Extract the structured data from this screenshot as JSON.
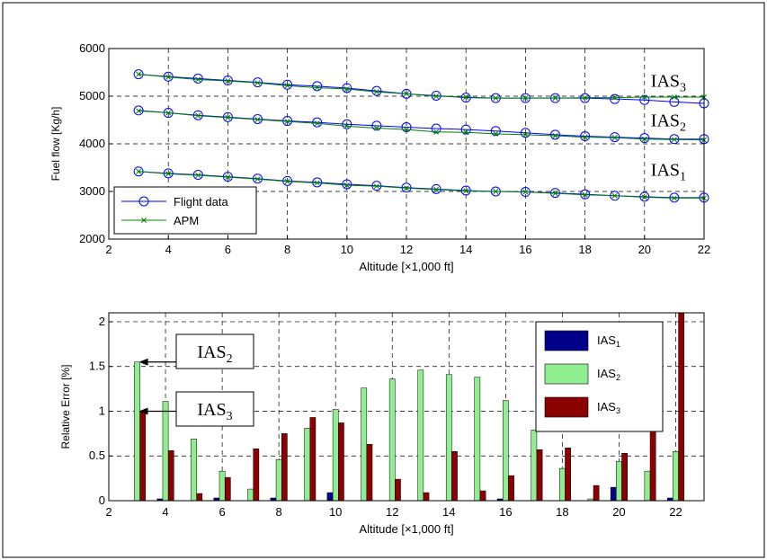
{
  "chart_data": [
    {
      "type": "line",
      "xlabel": "Altitude [×1,000 ft]",
      "ylabel": "Fuel flow [Kg/h]",
      "xlim": [
        2,
        22
      ],
      "ylim": [
        2000,
        6000
      ],
      "xticks": [
        "2",
        "4",
        "6",
        "8",
        "10",
        "12",
        "14",
        "16",
        "18",
        "20",
        "22"
      ],
      "yticks": [
        "2000",
        "3000",
        "4000",
        "5000",
        "6000"
      ],
      "grid": true,
      "legend_position": "bottom-left",
      "x": [
        3,
        4,
        5,
        6,
        7,
        8,
        9,
        10,
        11,
        12,
        13,
        14,
        15,
        16,
        17,
        18,
        19,
        20,
        21,
        22
      ],
      "series": [
        {
          "name": "Flight data",
          "group": "IAS1",
          "color": "#0000ff",
          "marker": "circle",
          "values": [
            3420,
            3380,
            3350,
            3310,
            3270,
            3220,
            3190,
            3150,
            3120,
            3080,
            3050,
            3020,
            3000,
            2990,
            2970,
            2940,
            2910,
            2890,
            2870,
            2870
          ]
        },
        {
          "name": "APM",
          "group": "IAS1",
          "color": "#008000",
          "marker": "x",
          "values": [
            3420,
            3370,
            3340,
            3300,
            3260,
            3210,
            3180,
            3130,
            3110,
            3070,
            3040,
            3010,
            3000,
            2990,
            2960,
            2930,
            2910,
            2880,
            2860,
            2860
          ]
        },
        {
          "name": "Flight data",
          "group": "IAS2",
          "color": "#0000ff",
          "marker": "circle",
          "values": [
            4700,
            4650,
            4600,
            4560,
            4520,
            4480,
            4450,
            4410,
            4380,
            4350,
            4320,
            4300,
            4270,
            4230,
            4190,
            4160,
            4140,
            4120,
            4100,
            4100
          ]
        },
        {
          "name": "APM",
          "group": "IAS2",
          "color": "#008000",
          "marker": "x",
          "values": [
            4690,
            4650,
            4590,
            4550,
            4510,
            4470,
            4430,
            4370,
            4330,
            4300,
            4250,
            4240,
            4210,
            4190,
            4170,
            4140,
            4130,
            4100,
            4090,
            4080
          ]
        },
        {
          "name": "Flight data",
          "group": "IAS3",
          "color": "#0000ff",
          "marker": "circle",
          "values": [
            5460,
            5410,
            5370,
            5330,
            5290,
            5240,
            5210,
            5170,
            5110,
            5050,
            5010,
            4970,
            4960,
            4960,
            4960,
            4960,
            4940,
            4920,
            4880,
            4850
          ]
        },
        {
          "name": "APM",
          "group": "IAS3",
          "color": "#008000",
          "marker": "x",
          "values": [
            5460,
            5400,
            5350,
            5320,
            5280,
            5220,
            5180,
            5150,
            5090,
            5050,
            5000,
            4980,
            4960,
            4960,
            4960,
            4970,
            4970,
            4980,
            4980,
            4980
          ]
        }
      ],
      "legend": [
        "Flight data",
        "APM"
      ],
      "annotations": [
        {
          "text": "IAS",
          "sub": "3",
          "x": 20,
          "y": 5200
        },
        {
          "text": "IAS",
          "sub": "2",
          "x": 20,
          "y": 4370
        },
        {
          "text": "IAS",
          "sub": "1",
          "x": 20,
          "y": 3330
        }
      ]
    },
    {
      "type": "bar",
      "xlabel": "Altitude [×1,000 ft]",
      "ylabel": "Relative Error [%]",
      "xlim": [
        2,
        23
      ],
      "ylim": [
        0,
        2.1
      ],
      "xticks": [
        "2",
        "4",
        "6",
        "8",
        "10",
        "12",
        "14",
        "16",
        "18",
        "20",
        "22"
      ],
      "yticks": [
        "0",
        "0.5",
        "1",
        "1.5",
        "2"
      ],
      "grid": true,
      "legend_position": "top-right",
      "x": [
        3,
        4,
        5,
        6,
        7,
        8,
        9,
        10,
        11,
        12,
        13,
        14,
        15,
        16,
        17,
        18,
        19,
        20,
        21,
        22
      ],
      "series": [
        {
          "name": "IAS",
          "sub": "1",
          "color": "#00008b",
          "values": [
            0,
            0.02,
            0,
            0.03,
            0,
            0.03,
            0,
            0.09,
            0,
            0,
            0,
            0,
            0,
            0.02,
            0,
            0,
            0,
            0.15,
            0,
            0.03
          ]
        },
        {
          "name": "IAS",
          "sub": "2",
          "color": "#90ee90",
          "values": [
            1.55,
            1.11,
            0.69,
            0.33,
            0.13,
            0.46,
            0.81,
            1.02,
            1.26,
            1.36,
            1.46,
            1.41,
            1.38,
            1.12,
            0.79,
            0.36,
            0.02,
            0.44,
            0.33,
            0.55
          ]
        },
        {
          "name": "IAS",
          "sub": "3",
          "color": "#8b0000",
          "values": [
            1.0,
            0.56,
            0.08,
            0.26,
            0.58,
            0.75,
            0.93,
            0.87,
            0.63,
            0.24,
            0.09,
            0.55,
            0.11,
            0.28,
            0.57,
            0.59,
            0.17,
            0.53,
            1.33,
            2.1
          ]
        }
      ],
      "annotations": [
        {
          "text": "IAS",
          "sub": "2",
          "target_x": 3,
          "target_y": 1.55
        },
        {
          "text": "IAS",
          "sub": "3",
          "target_x": 3,
          "target_y": 1.0
        }
      ]
    }
  ]
}
